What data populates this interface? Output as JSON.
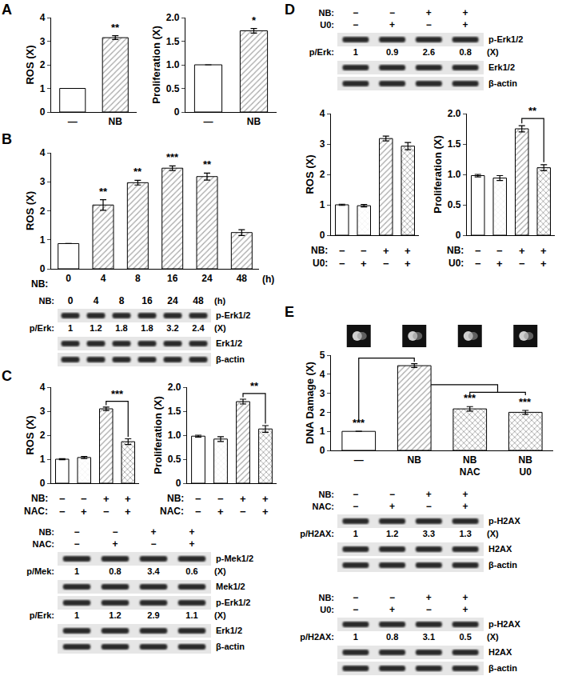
{
  "chart_data": [
    {
      "panel": "A",
      "type": "bar",
      "ylabel": "ROS (X)",
      "categories": [
        "—",
        "NB"
      ],
      "values": [
        1,
        3.15
      ],
      "errors": [
        0,
        0.08
      ],
      "colors": [
        "#ffffff",
        "#a6a6a6"
      ],
      "significance": [
        "",
        "**"
      ],
      "ylim": [
        0,
        4
      ],
      "yticks": [
        0,
        1,
        2,
        3,
        4
      ]
    },
    {
      "panel": "A",
      "type": "bar",
      "ylabel": "Proliferation (X)",
      "categories": [
        "—",
        "NB"
      ],
      "values": [
        1,
        1.72
      ],
      "errors": [
        0,
        0.05
      ],
      "colors": [
        "#ffffff",
        "#a6a6a6"
      ],
      "significance": [
        "",
        "*"
      ],
      "ylim": [
        0,
        2
      ],
      "yticks": [
        0,
        0.5,
        {
          "value": 1,
          "label": "1.0"
        },
        1.5,
        {
          "value": 2,
          "label": "2.0"
        }
      ]
    },
    {
      "panel": "B",
      "type": "bar",
      "ylabel": "ROS (X)",
      "xlabel": "NB:",
      "xunit": "(h)",
      "categories": [
        "0",
        "4",
        "8",
        "16",
        "24",
        "48"
      ],
      "values": [
        0.87,
        2.2,
        2.97,
        3.47,
        3.18,
        1.25
      ],
      "errors": [
        0,
        0.18,
        0.08,
        0.08,
        0.12,
        0.1
      ],
      "colors": [
        "#ffffff",
        "#a6a6a6",
        "#a6a6a6",
        "#a6a6a6",
        "#a6a6a6",
        "#a6a6a6"
      ],
      "significance": [
        "",
        "**",
        "**",
        "***",
        "**",
        ""
      ],
      "ylim": [
        0,
        4
      ],
      "yticks": [
        0,
        1,
        2,
        3,
        4
      ]
    },
    {
      "panel": "C",
      "type": "bar",
      "ylabel": "ROS (X)",
      "tick_labels": "y",
      "conditions": [
        {
          "label": "NB:",
          "values": [
            "−",
            "−",
            "+",
            "+"
          ]
        },
        {
          "label": "NAC:",
          "values": [
            "−",
            "+",
            "−",
            "+"
          ]
        }
      ],
      "values": [
        1,
        1.07,
        3.1,
        1.73
      ],
      "errors": [
        0.02,
        0.04,
        0.07,
        0.12
      ],
      "colors": [
        "#ffffff",
        "#f0f0f0",
        "#a6a6a6",
        "#8c8c8c"
      ],
      "brackets": [
        {
          "from": 2,
          "to": 3,
          "label": "***"
        }
      ],
      "ylim": [
        0,
        4
      ],
      "yticks": [
        0,
        1,
        2,
        3,
        4
      ]
    },
    {
      "panel": "C",
      "type": "bar",
      "ylabel": "Proliferation (X)",
      "tick_labels": "y",
      "conditions": [
        {
          "label": "NB:",
          "values": [
            "−",
            "−",
            "+",
            "+"
          ]
        },
        {
          "label": "NAC:",
          "values": [
            "−",
            "+",
            "−",
            "+"
          ]
        }
      ],
      "values": [
        0.98,
        0.92,
        1.7,
        1.13
      ],
      "errors": [
        0.02,
        0.05,
        0.05,
        0.07
      ],
      "colors": [
        "#ffffff",
        "#f0f0f0",
        "#a6a6a6",
        "#8c8c8c"
      ],
      "brackets": [
        {
          "from": 2,
          "to": 3,
          "label": "**"
        }
      ],
      "ylim": [
        0,
        2
      ],
      "yticks": [
        0,
        0.5,
        {
          "value": 1,
          "label": "1.0"
        },
        1.5,
        {
          "value": 2,
          "label": "2.0"
        }
      ]
    },
    {
      "panel": "D",
      "type": "bar",
      "ylabel": "ROS (X)",
      "tick_labels": "y",
      "conditions": [
        {
          "label": "NB:",
          "values": [
            "−",
            "−",
            "+",
            "+"
          ]
        },
        {
          "label": "U0:",
          "values": [
            "−",
            "+",
            "−",
            "+"
          ]
        }
      ],
      "values": [
        1,
        0.97,
        3.18,
        2.93
      ],
      "errors": [
        0.02,
        0.04,
        0.08,
        0.12
      ],
      "colors": [
        "#ffffff",
        "#f0f0f0",
        "#a6a6a6",
        "#8c8c8c"
      ],
      "ylim": [
        0,
        4
      ],
      "yticks": [
        0,
        1,
        2,
        3,
        4
      ]
    },
    {
      "panel": "D",
      "type": "bar",
      "ylabel": "Proliferation (X)",
      "tick_labels": "y",
      "conditions": [
        {
          "label": "NB:",
          "values": [
            "−",
            "−",
            "+",
            "+"
          ]
        },
        {
          "label": "U0:",
          "values": [
            "−",
            "+",
            "−",
            "+"
          ]
        }
      ],
      "values": [
        0.98,
        0.94,
        1.75,
        1.11
      ],
      "errors": [
        0.02,
        0.04,
        0.05,
        0.05
      ],
      "colors": [
        "#ffffff",
        "#f0f0f0",
        "#a6a6a6",
        "#8c8c8c"
      ],
      "brackets": [
        {
          "from": 2,
          "to": 3,
          "label": "**"
        }
      ],
      "ylim": [
        0,
        2
      ],
      "yticks": [
        0,
        0.5,
        {
          "value": 1,
          "label": "1.0"
        },
        1.5,
        {
          "value": 2,
          "label": "2.0"
        }
      ]
    },
    {
      "panel": "E",
      "type": "bar",
      "ylabel": "DNA Damage (X)",
      "categories": [
        "—",
        "NB",
        "NB NAC",
        "NB U0"
      ],
      "values": [
        1,
        4.45,
        2.18,
        2.0
      ],
      "errors": [
        0,
        0.1,
        0.12,
        0.1
      ],
      "colors": [
        "#ffffff",
        "#a6a6a6",
        "#8c8c8c",
        "#8c8c8c"
      ],
      "significance": [
        "***",
        "",
        "***",
        "***"
      ],
      "brackets": [
        {
          "from": 0,
          "to": 1
        },
        {
          "from": 1,
          "to": [
            2,
            3
          ]
        }
      ],
      "ylim": [
        0,
        5
      ],
      "yticks": [
        0,
        1,
        2,
        3,
        4,
        5
      ]
    }
  ],
  "blots": [
    {
      "header": [
        {
          "label": "NB:",
          "values": [
            "0",
            "4",
            "8",
            "16",
            "24",
            "48"
          ],
          "unit": "(h)"
        }
      ],
      "rows": [
        {
          "band": "p-Erk1/2",
          "ratio": {
            "label": "p/Erk:",
            "values": [
              1,
              1.2,
              1.8,
              1.8,
              3.2,
              2.4
            ],
            "unit": "(X)"
          }
        },
        {
          "band": "Erk1/2"
        },
        {
          "band": "β-actin"
        }
      ]
    },
    {
      "header": [
        {
          "label": "NB:",
          "values": [
            "−",
            "−",
            "+",
            "+"
          ]
        },
        {
          "label": "NAC:",
          "values": [
            "−",
            "+",
            "−",
            "+"
          ]
        }
      ],
      "rows": [
        {
          "band": "p-Mek1/2",
          "ratio": {
            "label": "p/Mek:",
            "values": [
              1,
              0.8,
              3.4,
              0.6
            ],
            "unit": "(X)"
          }
        },
        {
          "band": "Mek1/2"
        },
        {
          "band": "p-Erk1/2",
          "ratio": {
            "label": "p/Erk:",
            "values": [
              1,
              1.2,
              2.9,
              1.1
            ],
            "unit": "(X)"
          }
        },
        {
          "band": "Erk1/2"
        },
        {
          "band": "β-actin"
        }
      ]
    },
    {
      "header": [
        {
          "label": "NB:",
          "values": [
            "−",
            "−",
            "+",
            "+"
          ]
        },
        {
          "label": "U0:",
          "values": [
            "−",
            "+",
            "−",
            "+"
          ]
        }
      ],
      "rows": [
        {
          "band": "p-Erk1/2",
          "ratio": {
            "label": "p/Erk:",
            "values": [
              1,
              0.9,
              2.6,
              0.8
            ],
            "unit": "(X)"
          }
        },
        {
          "band": "Erk1/2"
        },
        {
          "band": "β-actin"
        }
      ]
    },
    {
      "header": [
        {
          "label": "NB:",
          "values": [
            "−",
            "−",
            "+",
            "+"
          ]
        },
        {
          "label": "NAC:",
          "values": [
            "−",
            "+",
            "−",
            "+"
          ]
        }
      ],
      "rows": [
        {
          "band": "p-H2AX",
          "ratio": {
            "label": "p/H2AX:",
            "values": [
              1,
              1.2,
              3.3,
              1.3
            ],
            "unit": "(X)"
          }
        },
        {
          "band": "H2AX"
        },
        {
          "band": "β-actin"
        }
      ]
    },
    {
      "header": [
        {
          "label": "NB:",
          "values": [
            "−",
            "−",
            "+",
            "+"
          ]
        },
        {
          "label": "U0:",
          "values": [
            "−",
            "+",
            "−",
            "+"
          ]
        }
      ],
      "rows": [
        {
          "band": "p-H2AX",
          "ratio": {
            "label": "p/H2AX:",
            "values": [
              1,
              0.8,
              3.1,
              0.5
            ],
            "unit": "(X)"
          }
        },
        {
          "band": "H2AX"
        },
        {
          "band": "β-actin"
        }
      ]
    }
  ]
}
